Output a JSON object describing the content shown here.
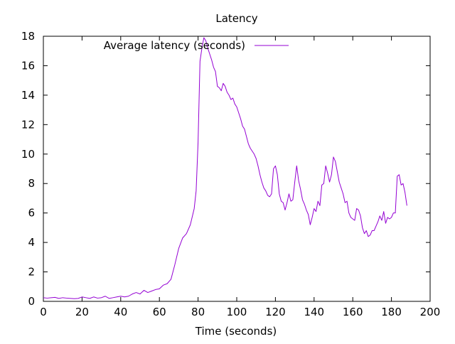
{
  "chart_data": {
    "type": "line",
    "title": "Latency",
    "xlabel": "Time (seconds)",
    "ylabel": "",
    "xlim": [
      0,
      200
    ],
    "ylim": [
      0,
      18
    ],
    "xticks": [
      0,
      20,
      40,
      60,
      80,
      100,
      120,
      140,
      160,
      180,
      200
    ],
    "yticks": [
      0,
      2,
      4,
      6,
      8,
      10,
      12,
      14,
      16,
      18
    ],
    "grid": false,
    "legend_position": "top-right",
    "series": [
      {
        "name": "Average latency (seconds)",
        "color": "#9400d3",
        "x": [
          0,
          2,
          4,
          6,
          8,
          10,
          12,
          14,
          16,
          18,
          20,
          22,
          24,
          26,
          28,
          30,
          32,
          34,
          36,
          38,
          40,
          42,
          44,
          46,
          48,
          50,
          52,
          54,
          56,
          58,
          60,
          62,
          64,
          66,
          68,
          70,
          72,
          74,
          76,
          78,
          79,
          80,
          81,
          82,
          83,
          84,
          85,
          86,
          87,
          88,
          89,
          90,
          91,
          92,
          93,
          94,
          95,
          96,
          97,
          98,
          99,
          100,
          101,
          102,
          103,
          104,
          105,
          106,
          107,
          108,
          109,
          110,
          111,
          112,
          113,
          114,
          115,
          116,
          117,
          118,
          119,
          120,
          121,
          122,
          123,
          124,
          125,
          126,
          127,
          128,
          129,
          130,
          131,
          132,
          133,
          134,
          135,
          136,
          137,
          138,
          139,
          140,
          141,
          142,
          143,
          144,
          145,
          146,
          147,
          148,
          149,
          150,
          151,
          152,
          153,
          154,
          155,
          156,
          157,
          158,
          159,
          160,
          161,
          162,
          163,
          164,
          165,
          166,
          167,
          168,
          169,
          170,
          171,
          172,
          173,
          174,
          175,
          176,
          177,
          178,
          179,
          180,
          181,
          182,
          183,
          184,
          185,
          186,
          187,
          188
        ],
        "values": [
          0.25,
          0.22,
          0.25,
          0.27,
          0.2,
          0.25,
          0.22,
          0.2,
          0.18,
          0.2,
          0.3,
          0.25,
          0.2,
          0.3,
          0.22,
          0.25,
          0.35,
          0.2,
          0.25,
          0.3,
          0.35,
          0.3,
          0.35,
          0.5,
          0.6,
          0.5,
          0.75,
          0.6,
          0.7,
          0.8,
          0.85,
          1.1,
          1.2,
          1.5,
          2.5,
          3.6,
          4.3,
          4.6,
          5.2,
          6.3,
          7.5,
          10.8,
          16.3,
          17.2,
          17.9,
          17.7,
          17.2,
          16.8,
          16.4,
          15.9,
          15.6,
          14.6,
          14.5,
          14.3,
          14.8,
          14.6,
          14.2,
          14.0,
          13.7,
          13.8,
          13.4,
          13.2,
          12.8,
          12.4,
          11.9,
          11.7,
          11.2,
          10.7,
          10.4,
          10.2,
          10.0,
          9.7,
          9.2,
          8.6,
          8.1,
          7.7,
          7.5,
          7.2,
          7.1,
          7.3,
          9.0,
          9.2,
          8.6,
          7.3,
          6.8,
          6.7,
          6.2,
          6.7,
          7.3,
          6.8,
          6.9,
          8.1,
          9.2,
          8.2,
          7.6,
          6.9,
          6.6,
          6.2,
          5.9,
          5.2,
          5.7,
          6.3,
          6.1,
          6.8,
          6.5,
          7.9,
          8.0,
          9.2,
          8.7,
          8.1,
          8.6,
          9.8,
          9.5,
          8.8,
          8.1,
          7.7,
          7.3,
          6.7,
          6.8,
          6.0,
          5.7,
          5.6,
          5.5,
          6.3,
          6.2,
          5.8,
          5.0,
          4.6,
          4.8,
          4.4,
          4.5,
          4.8,
          4.8,
          5.1,
          5.4,
          5.8,
          5.5,
          6.1,
          5.3,
          5.7,
          5.6,
          5.7,
          6.0,
          6.0,
          8.5,
          8.6,
          7.9,
          8.0,
          7.4,
          6.5
        ]
      }
    ]
  }
}
